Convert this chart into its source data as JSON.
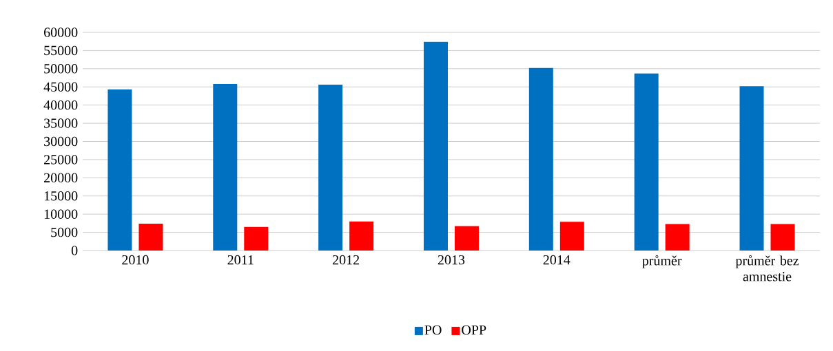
{
  "chart_data": {
    "type": "bar",
    "categories": [
      "2010",
      "2011",
      "2012",
      "2013",
      "2014",
      "průměr",
      "průměr bez amnestie"
    ],
    "series": [
      {
        "name": "PO",
        "color": "#0070c0",
        "values": [
          44300,
          45800,
          45600,
          57400,
          50200,
          48700,
          45200
        ]
      },
      {
        "name": "OPP",
        "color": "#ff0000",
        "values": [
          7400,
          6500,
          8000,
          6700,
          7900,
          7300,
          7300
        ]
      }
    ],
    "ylim": [
      0,
      60000
    ],
    "yticks": [
      0,
      5000,
      10000,
      15000,
      20000,
      25000,
      30000,
      35000,
      40000,
      45000,
      50000,
      55000,
      60000
    ],
    "grid": "y",
    "legend": "bottom"
  }
}
